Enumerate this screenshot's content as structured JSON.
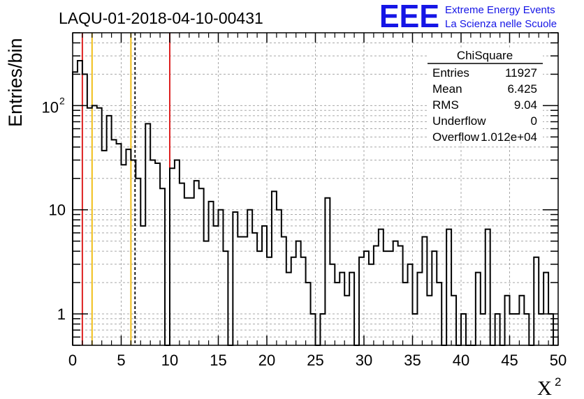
{
  "chart_data": {
    "type": "bar",
    "title": "LAQU-01-2018-04-10-00431",
    "ylabel": "Entries/bin",
    "xlabel": "X",
    "xlabel_superscript": "2",
    "xlim": [
      0,
      50
    ],
    "ylim": [
      0.5,
      500
    ],
    "yscale": "log",
    "grid": true,
    "bin_width": 0.5,
    "x_ticks": [
      "0",
      "5",
      "10",
      "15",
      "20",
      "25",
      "30",
      "35",
      "40",
      "45",
      "50"
    ],
    "y_ticks": [
      {
        "value": 1,
        "label": "1"
      },
      {
        "value": 10,
        "label": "10"
      },
      {
        "value": 100,
        "label": "10",
        "sup": "2"
      }
    ],
    "values": [
      210,
      270,
      200,
      95,
      100,
      95,
      37,
      80,
      47,
      43,
      27,
      38,
      30,
      20,
      7,
      67,
      30,
      28,
      16,
      0.4,
      25,
      30,
      18,
      13,
      13,
      19,
      16,
      5,
      12,
      7,
      10,
      4,
      0.4,
      9.5,
      5.5,
      5.5,
      10,
      6,
      4,
      7,
      3.5,
      15,
      10,
      5.5,
      2.5,
      3.5,
      5,
      3.5,
      2,
      1,
      0.4,
      1,
      13,
      3,
      2,
      2.5,
      1.5,
      2.5,
      0.4,
      3.5,
      4,
      3,
      4.5,
      6.5,
      4,
      4,
      5,
      4.5,
      2,
      3,
      1,
      2.5,
      5.5,
      1.5,
      4,
      2,
      0.4,
      6.5,
      1.5,
      0.4,
      1,
      0.4,
      0.4,
      2.5,
      1,
      6.5,
      0.4,
      1,
      0.4,
      1.5,
      1,
      1,
      1.5,
      1,
      0.4,
      3.5,
      1,
      2.5,
      1
    ],
    "vertical_lines": [
      {
        "x": 1,
        "color": "#dd2222",
        "style": "solid"
      },
      {
        "x": 2,
        "color": "#f0bf1a",
        "style": "solid"
      },
      {
        "x": 6,
        "color": "#f0bf1a",
        "style": "solid"
      },
      {
        "x": 6.425,
        "color": "#000000",
        "style": "dashed"
      },
      {
        "x": 10,
        "color": "#dd2222",
        "style": "solid"
      }
    ],
    "stats_box": {
      "title": "ChiSquare",
      "rows": [
        {
          "label": "Entries",
          "value": "11927"
        },
        {
          "label": "Mean",
          "value": "6.425"
        },
        {
          "label": "RMS",
          "value": "9.04"
        },
        {
          "label": "Underflow",
          "value": "0"
        },
        {
          "label": "Overflow",
          "value": "1.012e+04"
        }
      ]
    }
  },
  "logo": {
    "text": "EEE",
    "line1": "Extreme Energy Events",
    "line2": "La Scienza nelle Scuole",
    "color": "#1515e6"
  }
}
